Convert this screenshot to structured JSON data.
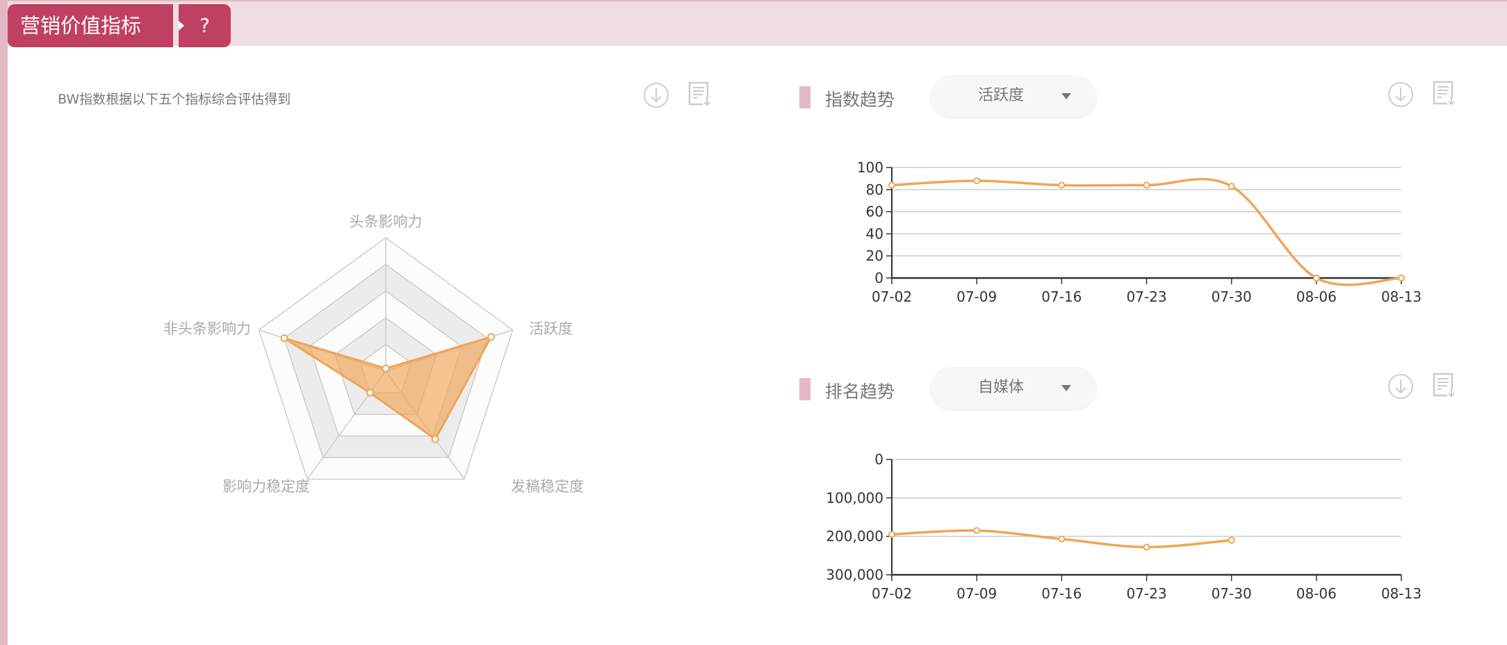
{
  "header": {
    "title": "营销价值指标",
    "help": "?"
  },
  "left": {
    "description": "BW指数根据以下五个指标综合评估得到",
    "icons": [
      "download-icon",
      "export-report-icon"
    ]
  },
  "index_trend": {
    "title": "指数趋势",
    "dropdown_value": "活跃度"
  },
  "rank_trend": {
    "title": "排名趋势",
    "dropdown_value": "自媒体"
  },
  "colors": {
    "accent": "#c04063",
    "series": "#f0a555",
    "band": "#f0dde1"
  },
  "chart_data": [
    {
      "type": "radar",
      "indicators": [
        "头条影响力",
        "活跃度",
        "发稿稳定度",
        "影响力稳定度",
        "非头条影响力"
      ],
      "max": 100,
      "values": [
        2,
        83,
        63,
        20,
        80
      ]
    },
    {
      "type": "line",
      "categories": [
        "07-02",
        "07-09",
        "07-16",
        "07-23",
        "07-30",
        "08-06",
        "08-13"
      ],
      "values": [
        84,
        88,
        84,
        84,
        83,
        0,
        0
      ],
      "ylim": [
        0,
        100
      ],
      "yticks": [
        "0",
        "20",
        "40",
        "60",
        "80",
        "100"
      ],
      "grid": true
    },
    {
      "type": "line",
      "categories": [
        "07-02",
        "07-09",
        "07-16",
        "07-23",
        "07-30",
        "08-06",
        "08-13"
      ],
      "values": [
        195000,
        185000,
        207000,
        228000,
        210000,
        null,
        null
      ],
      "ylim": [
        0,
        300000
      ],
      "y_inverted": true,
      "yticks": [
        "0",
        "100,000",
        "200,000",
        "300,000"
      ],
      "grid": true
    }
  ]
}
